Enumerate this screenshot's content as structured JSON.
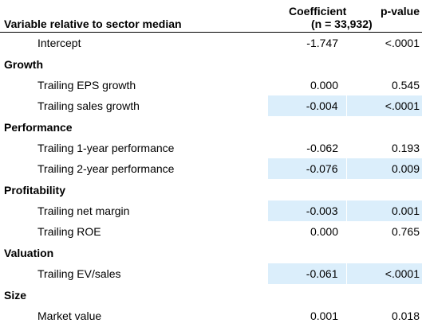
{
  "header": {
    "variable_label": "Variable relative to sector median",
    "coef_label": "Coefficient",
    "n_label": "(n = 33,932)",
    "pvalue_label": "p-value"
  },
  "intercept": {
    "label": "Intercept",
    "coefficient": "-1.747",
    "p_value": "<.0001",
    "highlighted": false
  },
  "groups": [
    {
      "title": "Growth",
      "rows": [
        {
          "label": "Trailing EPS growth",
          "coefficient": "0.000",
          "p_value": "0.545",
          "highlighted": false
        },
        {
          "label": "Trailing sales growth",
          "coefficient": "-0.004",
          "p_value": "<.0001",
          "highlighted": true
        }
      ]
    },
    {
      "title": "Performance",
      "rows": [
        {
          "label": "Trailing 1-year performance",
          "coefficient": "-0.062",
          "p_value": "0.193",
          "highlighted": false
        },
        {
          "label": "Trailing 2-year performance",
          "coefficient": "-0.076",
          "p_value": "0.009",
          "highlighted": true
        }
      ]
    },
    {
      "title": "Profitability",
      "rows": [
        {
          "label": "Trailing net margin",
          "coefficient": "-0.003",
          "p_value": "0.001",
          "highlighted": true
        },
        {
          "label": "Trailing ROE",
          "coefficient": "0.000",
          "p_value": "0.765",
          "highlighted": false
        }
      ]
    },
    {
      "title": "Valuation",
      "rows": [
        {
          "label": "Trailing EV/sales",
          "coefficient": "-0.061",
          "p_value": "<.0001",
          "highlighted": true
        }
      ]
    },
    {
      "title": "Size",
      "rows": [
        {
          "label": "Market value",
          "coefficient": "0.001",
          "p_value": "0.018",
          "highlighted": false
        }
      ]
    }
  ],
  "colors": {
    "highlight": "#dbeefb",
    "text": "#000000"
  }
}
